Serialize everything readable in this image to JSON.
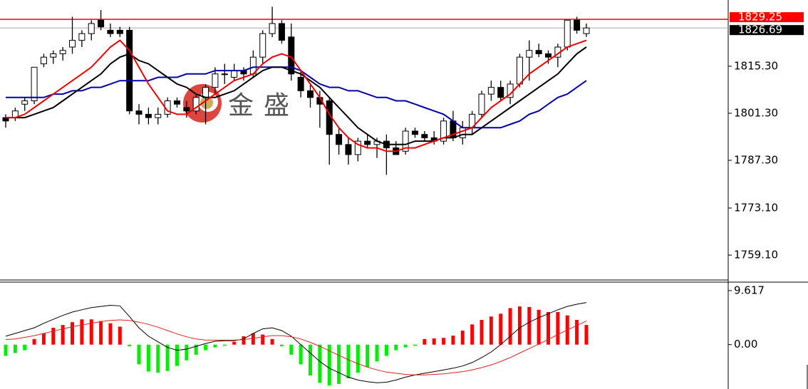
{
  "chart_data": [
    {
      "type": "candlestick",
      "watermark": "金盛",
      "candles": {
        "open": [
          1800,
          1800,
          1804,
          1805,
          1816,
          1818,
          1819,
          1821,
          1823,
          1825,
          1829,
          1826,
          1826,
          1826,
          1802,
          1801,
          1800,
          1801,
          1805,
          1803,
          1802,
          1806,
          1809,
          1813,
          1812,
          1814,
          1813,
          1818,
          1825,
          1828,
          1824,
          1812,
          1808,
          1806,
          1805,
          1795,
          1792,
          1789,
          1793,
          1792,
          1793,
          1791,
          1790,
          1796,
          1795,
          1794,
          1793,
          1799,
          1794,
          1797,
          1801,
          1807,
          1809,
          1806,
          1810,
          1818,
          1820,
          1819,
          1818,
          1821,
          1829,
          1825
        ],
        "high": [
          1801,
          1803,
          1806,
          1815,
          1819,
          1820,
          1821,
          1830,
          1826,
          1829,
          1832,
          1828,
          1827,
          1827,
          1804,
          1803,
          1803,
          1806,
          1806,
          1805,
          1807,
          1810,
          1815,
          1816,
          1816,
          1815,
          1820,
          1826,
          1833,
          1829,
          1828,
          1814,
          1810,
          1808,
          1806,
          1797,
          1794,
          1794,
          1795,
          1794,
          1795,
          1793,
          1797,
          1797,
          1796,
          1796,
          1800,
          1802,
          1799,
          1802,
          1808,
          1811,
          1811,
          1811,
          1819,
          1823,
          1822,
          1820,
          1822,
          1829,
          1830,
          1828
        ],
        "low": [
          1797,
          1799,
          1802,
          1804,
          1815,
          1816,
          1817,
          1819,
          1821,
          1823,
          1826,
          1824,
          1824,
          1801,
          1798,
          1798,
          1798,
          1800,
          1803,
          1800,
          1801,
          1798,
          1807,
          1810,
          1811,
          1811,
          1812,
          1816,
          1824,
          1822,
          1811,
          1806,
          1803,
          1797,
          1786,
          1789,
          1786,
          1787,
          1791,
          1788,
          1783,
          1789,
          1789,
          1794,
          1793,
          1792,
          1792,
          1793,
          1792,
          1795,
          1800,
          1805,
          1805,
          1804,
          1809,
          1811,
          1818,
          1816,
          1815,
          1820,
          1825,
          1824
        ],
        "close": [
          1799,
          1802,
          1805,
          1815,
          1818,
          1819,
          1820,
          1823,
          1825,
          1828,
          1827,
          1825,
          1825,
          1802,
          1801,
          1800,
          1801,
          1805,
          1804,
          1802,
          1806,
          1809,
          1813,
          1813,
          1814,
          1813,
          1818,
          1825,
          1828,
          1823,
          1813,
          1808,
          1806,
          1804,
          1795,
          1792,
          1789,
          1793,
          1792,
          1793,
          1791,
          1789,
          1796,
          1795,
          1794,
          1793,
          1799,
          1794,
          1797,
          1801,
          1807,
          1809,
          1806,
          1810,
          1818,
          1820,
          1819,
          1818,
          1821,
          1829,
          1826,
          1826.69
        ]
      },
      "up_color": "#ffffff",
      "down_color": "#000000",
      "series": [
        {
          "color": "#0000aa",
          "values": [
            1806,
            1806,
            1806,
            1806,
            1806,
            1807,
            1807,
            1808,
            1808,
            1809,
            1809,
            1810,
            1811,
            1811,
            1811,
            1811,
            1812,
            1812,
            1812,
            1813,
            1813,
            1813,
            1814,
            1814,
            1814,
            1814,
            1815,
            1815,
            1815,
            1815,
            1815,
            1814,
            1812,
            1810,
            1809,
            1809,
            1808,
            1808,
            1807,
            1806,
            1806,
            1805,
            1805,
            1804,
            1803,
            1802,
            1801,
            1799,
            1797,
            1797,
            1797,
            1797,
            1797,
            1798,
            1799,
            1801,
            1802,
            1804,
            1806,
            1807,
            1809,
            1811
          ]
        },
        {
          "color": "#000000",
          "values": [
            1800,
            1800,
            1800,
            1801,
            1802,
            1803,
            1805,
            1807,
            1809,
            1811,
            1813,
            1816,
            1818,
            1819,
            1817,
            1816,
            1814,
            1812,
            1810,
            1809,
            1807,
            1806,
            1806,
            1807,
            1808,
            1810,
            1812,
            1814,
            1815,
            1815,
            1814,
            1813,
            1811,
            1809,
            1806,
            1803,
            1800,
            1797,
            1795,
            1793,
            1792,
            1792,
            1792,
            1793,
            1793,
            1793,
            1794,
            1794,
            1795,
            1795,
            1797,
            1799,
            1801,
            1803,
            1805,
            1807,
            1809,
            1811,
            1813,
            1816,
            1819,
            1821
          ]
        },
        {
          "color": "#ee0000",
          "values": [
            1800,
            1800,
            1801,
            1803,
            1805,
            1807,
            1809,
            1811,
            1813,
            1815,
            1818,
            1821,
            1823,
            1820,
            1815,
            1810,
            1806,
            1802,
            1801,
            1801,
            1803,
            1805,
            1807,
            1809,
            1811,
            1812,
            1813,
            1816,
            1818,
            1819,
            1818,
            1814,
            1810,
            1806,
            1801,
            1797,
            1794,
            1792,
            1791,
            1791,
            1790,
            1790,
            1791,
            1791,
            1792,
            1793,
            1794,
            1795,
            1796,
            1797,
            1800,
            1803,
            1805,
            1807,
            1810,
            1813,
            1815,
            1817,
            1819,
            1821,
            1822,
            1823
          ]
        }
      ],
      "price_lines": [
        {
          "value": 1829.25,
          "color": "#ff0000"
        },
        {
          "value": 1826.69,
          "color": "#000000"
        }
      ],
      "ylim": [
        1751.9,
        1835.0
      ],
      "yticks": [
        {
          "value": 1815.3,
          "label": "1815.30"
        },
        {
          "value": 1801.3,
          "label": "1801.30"
        },
        {
          "value": 1787.3,
          "label": "1787.30"
        },
        {
          "value": 1773.1,
          "label": "1773.10"
        },
        {
          "value": 1759.1,
          "label": "1759.10"
        }
      ]
    },
    {
      "type": "macd",
      "histogram": [
        -2,
        -1.5,
        -1,
        1,
        2,
        3,
        3.5,
        4,
        4.5,
        4.5,
        4.2,
        3.8,
        3.2,
        -0.3,
        -3.5,
        -4.8,
        -5,
        -4.7,
        -3.8,
        -2.8,
        -1.8,
        -1,
        -0.5,
        -0.2,
        0.5,
        1.5,
        2,
        1.8,
        1,
        -0.3,
        -1.8,
        -3.5,
        -5.5,
        -6.8,
        -7.3,
        -7,
        -6,
        -5,
        -4,
        -3,
        -2,
        -1,
        -0.5,
        -0.2,
        1,
        1.1,
        1.2,
        1.6,
        2.5,
        3.6,
        4.4,
        5,
        5.5,
        6.5,
        6.8,
        6.7,
        6.2,
        5.8,
        5.8,
        5.2,
        4.4,
        3.5
      ],
      "pos_color": "#ff0000",
      "neg_color": "#00ee00",
      "series": [
        {
          "color": "#000000",
          "values": [
            1.5,
            2,
            2.5,
            3,
            3.8,
            4.5,
            5.2,
            5.8,
            6.2,
            6.6,
            6.8,
            7,
            6.9,
            5,
            3,
            1.5,
            0.5,
            -0.5,
            -1,
            -0.8,
            -0.3,
            0.2,
            0.6,
            0.7,
            0.7,
            1,
            2,
            2.8,
            3,
            2.5,
            1.5,
            0,
            -1.5,
            -3,
            -4.2,
            -5,
            -5.8,
            -6.3,
            -6.6,
            -6.8,
            -6.7,
            -6.3,
            -5.8,
            -5.4,
            -5.1,
            -4.8,
            -4.5,
            -4.2,
            -3.8,
            -3.2,
            -2.3,
            -1.3,
            0,
            1.5,
            3,
            4,
            4.8,
            5.5,
            6.2,
            6.8,
            7.2,
            7.5
          ]
        },
        {
          "color": "#dd2222",
          "values": [
            0.9,
            1,
            1.3,
            1.6,
            2,
            2.4,
            2.8,
            3.2,
            3.5,
            3.8,
            4.1,
            4.3,
            4.4,
            4.3,
            4,
            3.6,
            3.1,
            2.5,
            1.9,
            1.4,
            1,
            0.8,
            0.8,
            0.8,
            0.8,
            0.9,
            1.1,
            1.4,
            1.6,
            1.6,
            1.4,
            1,
            0.4,
            -0.3,
            -1.1,
            -1.9,
            -2.7,
            -3.4,
            -4,
            -4.5,
            -4.9,
            -5.1,
            -5.3,
            -5.4,
            -5.4,
            -5.3,
            -5.2,
            -5,
            -4.8,
            -4.5,
            -4.1,
            -3.6,
            -3,
            -2.3,
            -1.5,
            -0.7,
            0.1,
            0.9,
            1.8,
            2.6,
            3.4,
            4.2
          ]
        }
      ],
      "ylim": [
        -7.9,
        11.0
      ],
      "yticks": [
        9.617,
        {
          "value": 0,
          "label": "0.00"
        }
      ]
    }
  ]
}
